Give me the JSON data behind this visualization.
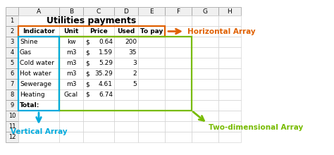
{
  "title": "Utilities payments",
  "col_letters": [
    "",
    "A",
    "B",
    "C",
    "D",
    "E",
    "F",
    "G",
    "H"
  ],
  "row_numbers": [
    "",
    "1",
    "2",
    "3",
    "4",
    "5",
    "6",
    "7",
    "8",
    "9",
    "10",
    "11",
    "12"
  ],
  "table_rows_data": [
    [
      "Indicator",
      "Unit",
      "Price",
      "Used",
      "To pay"
    ],
    [
      "Shine",
      "kw",
      "$ 0.64",
      "200",
      ""
    ],
    [
      "Gas",
      "m3",
      "$ 1.59",
      "35",
      ""
    ],
    [
      "Cold water",
      "m3",
      "$ 5.29",
      "3",
      ""
    ],
    [
      "Hot water",
      "m3",
      "$ 35.29",
      "2",
      ""
    ],
    [
      "Sewerage",
      "m3",
      "$ 4.61",
      "5",
      ""
    ],
    [
      "Heating",
      "Gcal",
      "$ 6.74",
      "",
      ""
    ],
    [
      "Total:",
      "",
      "",
      "",
      ""
    ]
  ],
  "row_aligns": [
    "left",
    "center",
    "center",
    "right",
    "center"
  ],
  "price_align": "left_dollar",
  "orange_color": "#E06000",
  "blue_color": "#00AADD",
  "green_color": "#77BB00",
  "header_bg": "#F0F0F0",
  "cell_bg": "#FFFFFF",
  "grid_light": "#CCCCCC",
  "grid_dark": "#888888",
  "label_horizontal": "Horizontal Array",
  "label_vertical": "Vertical Array",
  "label_2d": "Two-dimensional Array",
  "title_fontsize": 9,
  "cell_fontsize": 6.5,
  "label_fontsize": 7.5
}
